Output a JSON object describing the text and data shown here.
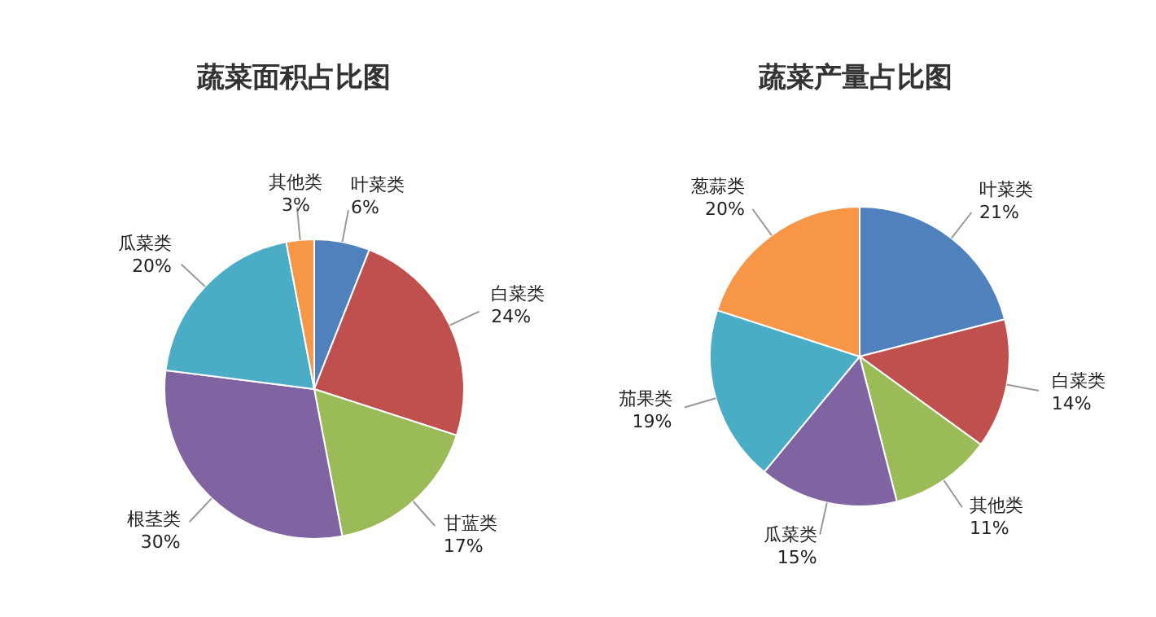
{
  "chart_data": [
    {
      "type": "pie",
      "title": "蔬菜面积占比图",
      "categories": [
        "叶菜类",
        "白菜类",
        "甘蓝类",
        "根茎类",
        "瓜菜类",
        "其他类"
      ],
      "values": [
        6,
        24,
        17,
        30,
        20,
        3
      ],
      "value_labels": [
        "6%",
        "24%",
        "17%",
        "30%",
        "20%",
        "3%"
      ],
      "colors": [
        "#4f81bd",
        "#c0504d",
        "#9bbb59",
        "#8064a2",
        "#4bacc6",
        "#f79646"
      ]
    },
    {
      "type": "pie",
      "title": "蔬菜产量占比图",
      "categories": [
        "叶菜类",
        "白菜类",
        "其他类",
        "瓜菜类",
        "茄果类",
        "葱蒜类"
      ],
      "values": [
        21,
        14,
        11,
        15,
        19,
        20
      ],
      "value_labels": [
        "21%",
        "14%",
        "11%",
        "15%",
        "19%",
        "20%"
      ],
      "colors": [
        "#4f81bd",
        "#c0504d",
        "#9bbb59",
        "#8064a2",
        "#4bacc6",
        "#f79646"
      ]
    }
  ]
}
